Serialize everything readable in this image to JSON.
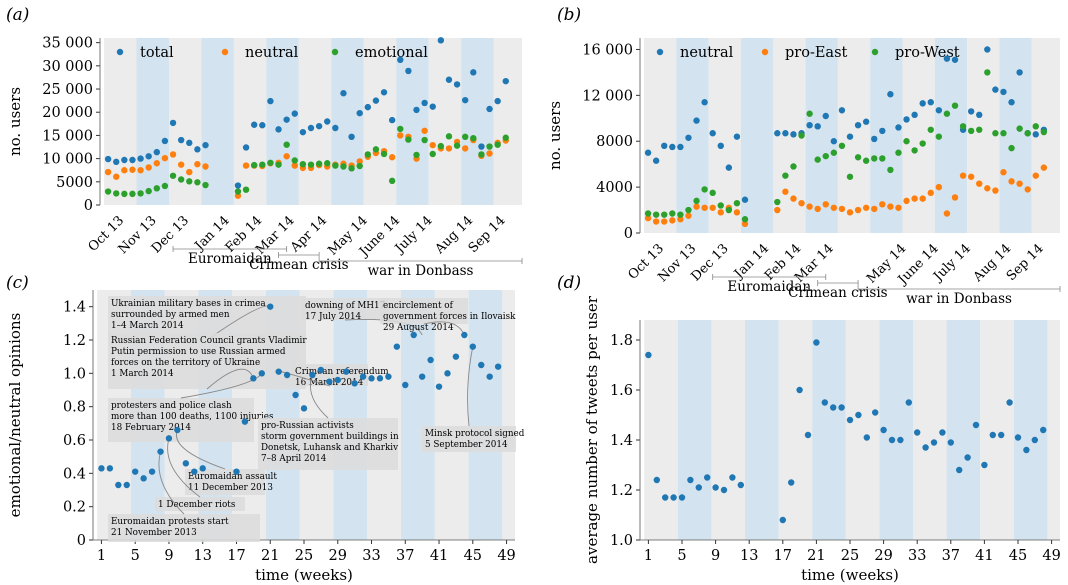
{
  "chart_data": [
    {
      "panel": "(a)",
      "type": "scatter",
      "ylabel": "no. users",
      "ylim": [
        0,
        36000
      ],
      "y_ticks": [
        0,
        5000,
        10000,
        15000,
        20000,
        25000,
        30000,
        35000
      ],
      "y_tick_labels": [
        "0",
        "5000",
        "10 000",
        "15 000",
        "20 000",
        "25 000",
        "30 000",
        "35 000"
      ],
      "x_ticks": [
        {
          "label": "Oct 13",
          "x": 3
        },
        {
          "label": "Nov 13",
          "x": 7
        },
        {
          "label": "Dec 13",
          "x": 11
        },
        {
          "label": "Jan 14",
          "x": 16
        },
        {
          "label": "Feb 14",
          "x": 20
        },
        {
          "label": "Mar 14",
          "x": 24
        },
        {
          "label": "Apr 14",
          "x": 28
        },
        {
          "label": "May 14",
          "x": 33
        },
        {
          "label": "June 14",
          "x": 37
        },
        {
          "label": "July 14",
          "x": 41
        },
        {
          "label": "Aug 14",
          "x": 46
        },
        {
          "label": "Sep 14",
          "x": 50
        }
      ],
      "legend": [
        "total",
        "neutral",
        "emotional"
      ],
      "periods": [
        {
          "label": "Euromaidan",
          "start": 9,
          "end": 23
        },
        {
          "label": "Crimean crisis",
          "start": 22,
          "end": 27
        },
        {
          "label": "war in Donbass",
          "start": 27,
          "end": 52
        }
      ],
      "series": [
        {
          "name": "total",
          "color": "#1f77b4",
          "x": [
            1,
            2,
            3,
            4,
            5,
            6,
            7,
            8,
            9,
            10,
            11,
            12,
            13,
            17,
            18,
            19,
            20,
            21,
            22,
            23,
            24,
            25,
            26,
            27,
            28,
            29,
            30,
            31,
            32,
            33,
            34,
            35,
            36,
            37,
            38,
            39,
            40,
            41,
            42,
            43,
            44,
            45,
            46,
            47,
            48,
            49,
            50
          ],
          "values": [
            9900,
            9300,
            9700,
            9700,
            10000,
            10500,
            11400,
            13800,
            17700,
            14000,
            13400,
            12000,
            12900,
            4200,
            12400,
            17300,
            17200,
            22400,
            16300,
            18400,
            19700,
            15700,
            16600,
            17000,
            18000,
            16600,
            24100,
            14700,
            19800,
            21100,
            22500,
            24300,
            18300,
            31300,
            28900,
            20500,
            22000,
            21200,
            35500,
            27000,
            26000,
            22600,
            28600,
            12600,
            20700,
            22400,
            26700
          ]
        },
        {
          "name": "neutral",
          "color": "#ff7f0e",
          "x": [
            1,
            2,
            3,
            4,
            5,
            6,
            7,
            8,
            9,
            10,
            11,
            12,
            13,
            17,
            18,
            19,
            20,
            21,
            22,
            23,
            24,
            25,
            26,
            27,
            28,
            29,
            30,
            31,
            32,
            33,
            34,
            35,
            36,
            37,
            38,
            39,
            40,
            41,
            42,
            43,
            44,
            45,
            46,
            47,
            48,
            49,
            50
          ],
          "values": [
            7100,
            6100,
            7500,
            7600,
            7500,
            8100,
            9000,
            10100,
            10900,
            8700,
            7100,
            8800,
            8300,
            2000,
            8500,
            8500,
            8400,
            9000,
            9100,
            10500,
            8500,
            8000,
            8000,
            8600,
            8300,
            8700,
            8900,
            8500,
            9400,
            10400,
            11200,
            11600,
            10300,
            15000,
            14700,
            10000,
            16000,
            12900,
            12200,
            12200,
            13600,
            12200,
            14000,
            10600,
            11100,
            13400,
            13900
          ]
        },
        {
          "name": "emotional",
          "color": "#2ca02c",
          "x": [
            1,
            2,
            3,
            4,
            5,
            6,
            7,
            8,
            9,
            10,
            11,
            12,
            13,
            17,
            18,
            19,
            20,
            21,
            22,
            23,
            24,
            25,
            26,
            27,
            28,
            29,
            30,
            31,
            32,
            33,
            34,
            35,
            36,
            37,
            38,
            39,
            40,
            41,
            42,
            43,
            44,
            45,
            46,
            47,
            48,
            49,
            50
          ],
          "values": [
            2900,
            2500,
            2400,
            2400,
            2500,
            3000,
            3600,
            4100,
            6300,
            5500,
            5100,
            4900,
            4300,
            2900,
            3300,
            8600,
            8700,
            9100,
            8700,
            13000,
            9600,
            8800,
            8700,
            8900,
            9000,
            8500,
            8300,
            7900,
            8400,
            10900,
            12000,
            11000,
            5200,
            16400,
            14100,
            10800,
            14000,
            11000,
            12700,
            14800,
            12800,
            14700,
            14400,
            10900,
            12600,
            13000,
            14500
          ]
        }
      ]
    },
    {
      "panel": "(b)",
      "type": "scatter",
      "ylabel": "no. users",
      "ylim": [
        0,
        17000
      ],
      "y_ticks": [
        0,
        4000,
        8000,
        12000,
        16000
      ],
      "y_tick_labels": [
        "0",
        "4000",
        "8000",
        "12 000",
        "16 000"
      ],
      "x_ticks": [
        {
          "label": "Oct 13",
          "x": 3
        },
        {
          "label": "Nov 13",
          "x": 7
        },
        {
          "label": "Dec 13",
          "x": 11
        },
        {
          "label": "Jan 14",
          "x": 16
        },
        {
          "label": "Feb 14",
          "x": 20
        },
        {
          "label": "Mar 14",
          "x": 24
        },
        {
          "label": "May 14",
          "x": 33
        },
        {
          "label": "June 14",
          "x": 37
        },
        {
          "label": "July 14",
          "x": 41
        },
        {
          "label": "Aug 14",
          "x": 46
        },
        {
          "label": "Sep 14",
          "x": 50
        }
      ],
      "legend": [
        "neutral",
        "pro-East",
        "pro-West"
      ],
      "periods": [
        {
          "label": "Euromaidan",
          "start": 9,
          "end": 23
        },
        {
          "label": "Crimean crisis",
          "start": 22,
          "end": 27
        },
        {
          "label": "war in Donbass",
          "start": 27,
          "end": 52
        }
      ],
      "series": [
        {
          "name": "neutral",
          "color": "#1f77b4",
          "x": [
            1,
            2,
            3,
            4,
            5,
            6,
            7,
            8,
            9,
            10,
            11,
            12,
            13,
            17,
            18,
            19,
            20,
            21,
            22,
            23,
            24,
            25,
            26,
            27,
            28,
            29,
            30,
            31,
            32,
            33,
            34,
            35,
            36,
            37,
            38,
            39,
            40,
            41,
            42,
            43,
            44,
            45,
            46,
            47,
            48,
            49,
            50
          ],
          "values": [
            7000,
            6300,
            7600,
            7500,
            7500,
            8300,
            9800,
            11400,
            8700,
            7600,
            5700,
            8400,
            2900,
            8700,
            8700,
            8600,
            8700,
            9400,
            9300,
            10200,
            8000,
            10700,
            8400,
            9400,
            9700,
            8200,
            8900,
            12100,
            9200,
            9900,
            10300,
            11300,
            11400,
            10700,
            15200,
            15100,
            9000,
            10600,
            10300,
            16000,
            12500,
            12300,
            11400,
            14000,
            8700,
            8600,
            9000
          ]
        },
        {
          "name": "pro-East",
          "color": "#ff7f0e",
          "x": [
            1,
            2,
            3,
            4,
            5,
            6,
            7,
            8,
            9,
            10,
            11,
            12,
            13,
            17,
            18,
            19,
            20,
            21,
            22,
            23,
            24,
            25,
            26,
            27,
            28,
            29,
            30,
            31,
            32,
            33,
            34,
            35,
            36,
            37,
            38,
            39,
            40,
            41,
            42,
            43,
            44,
            45,
            46,
            47,
            48,
            49,
            50
          ],
          "values": [
            1300,
            1000,
            1000,
            1100,
            1200,
            1500,
            2300,
            2200,
            2200,
            1800,
            2200,
            1800,
            800,
            2000,
            3600,
            3000,
            2600,
            2300,
            2100,
            2500,
            2200,
            2100,
            1800,
            2000,
            2200,
            2100,
            2500,
            2300,
            2200,
            2800,
            3000,
            3000,
            3500,
            4000,
            1700,
            3100,
            5000,
            4900,
            4300,
            3900,
            3700,
            5300,
            4500,
            4300,
            3800,
            5000,
            5700
          ]
        },
        {
          "name": "pro-West",
          "color": "#2ca02c",
          "x": [
            1,
            2,
            3,
            4,
            5,
            6,
            7,
            8,
            9,
            10,
            11,
            12,
            13,
            17,
            18,
            19,
            20,
            21,
            22,
            23,
            24,
            25,
            26,
            27,
            28,
            29,
            30,
            31,
            32,
            33,
            34,
            35,
            36,
            37,
            38,
            39,
            40,
            41,
            42,
            43,
            44,
            45,
            46,
            47,
            48,
            49,
            50
          ],
          "values": [
            1700,
            1600,
            1600,
            1700,
            1600,
            2000,
            2800,
            3800,
            3500,
            2400,
            2000,
            2600,
            1200,
            2700,
            5000,
            5800,
            8500,
            10400,
            6400,
            6700,
            7000,
            7600,
            4900,
            6600,
            6300,
            6500,
            6500,
            5500,
            7000,
            8000,
            7200,
            7800,
            9000,
            8400,
            10400,
            11100,
            9300,
            8900,
            9000,
            14000,
            8700,
            8700,
            7400,
            9100,
            8700,
            9300,
            8800
          ]
        }
      ]
    },
    {
      "panel": "(c)",
      "type": "scatter",
      "xlabel": "time (weeks)",
      "ylabel": "emotional/neutral opinions",
      "ylim": [
        0,
        1.5
      ],
      "y_ticks": [
        0,
        0.2,
        0.4,
        0.6,
        0.8,
        1.0,
        1.2,
        1.4
      ],
      "y_tick_labels": [
        "0",
        "0.2",
        "0.4",
        "0.6",
        "0.8",
        "1.0",
        "1.2",
        "1.4"
      ],
      "x_ticks": [
        1,
        5,
        9,
        13,
        17,
        21,
        25,
        29,
        33,
        37,
        41,
        45,
        49
      ],
      "series": [
        {
          "name": "",
          "color": "#1f77b4",
          "x": [
            1,
            2,
            3,
            4,
            5,
            6,
            7,
            8,
            9,
            10,
            11,
            12,
            13,
            17,
            18,
            19,
            20,
            21,
            22,
            23,
            24,
            25,
            26,
            27,
            28,
            29,
            30,
            31,
            32,
            33,
            34,
            35,
            36,
            37,
            38,
            39,
            40,
            41,
            42,
            43,
            44,
            45,
            46,
            47,
            48
          ],
          "values": [
            0.43,
            0.43,
            0.33,
            0.33,
            0.41,
            0.37,
            0.41,
            0.53,
            0.61,
            0.66,
            0.46,
            0.41,
            0.43,
            0.41,
            0.71,
            0.97,
            1.0,
            1.4,
            1.01,
            0.99,
            0.87,
            0.79,
            0.99,
            1.02,
            0.95,
            0.96,
            1.01,
            0.94,
            0.98,
            0.97,
            0.97,
            0.98,
            1.16,
            0.93,
            1.23,
            0.98,
            1.08,
            0.92,
            1.0,
            1.1,
            1.23,
            1.16,
            1.05,
            0.98,
            1.04
          ]
        }
      ],
      "annotations": [
        "Ukrainian military bases in crimea\nsurrounded by armed men\n1–4 March 2014",
        "Russian Federation Council grants Vladimir\nPutin permission to use Russian armed\nforces on the territory of Ukraine\n1 March 2014",
        "protesters and police clash\nmore than 100 deaths, 1100 injuries\n18 February 2014",
        "Euromaidan assault\n11 December 2013",
        "1 December riots",
        "Euromaidan protests start\n21 November 2013",
        "Crimean referendum\n16 March 2014",
        "pro-Russian activists\nstorm government buildings in\nDonetsk, Luhansk and Kharkiv\n7–8 April 2014",
        "downing of MH17\n17 July 2014",
        "encirclement of\ngovernment forces in Ilovaisk\n29 August 2014",
        "Minsk protocol signed\n5 September 2014"
      ]
    },
    {
      "panel": "(d)",
      "type": "scatter",
      "xlabel": "time (weeks)",
      "ylabel": "average number of tweets per user",
      "ylim": [
        1.0,
        1.88
      ],
      "y_ticks": [
        1.0,
        1.2,
        1.4,
        1.6,
        1.8
      ],
      "y_tick_labels": [
        "1.0",
        "1.2",
        "1.4",
        "1.6",
        "1.8"
      ],
      "x_ticks": [
        1,
        5,
        9,
        13,
        17,
        21,
        25,
        29,
        33,
        37,
        41,
        45,
        49
      ],
      "series": [
        {
          "name": "",
          "color": "#1f77b4",
          "x": [
            1,
            2,
            3,
            4,
            5,
            6,
            7,
            8,
            9,
            10,
            11,
            12,
            17,
            18,
            19,
            20,
            21,
            22,
            23,
            24,
            25,
            26,
            27,
            28,
            29,
            30,
            31,
            32,
            33,
            34,
            35,
            36,
            37,
            38,
            39,
            40,
            41,
            42,
            43,
            44,
            45,
            46,
            47,
            48
          ],
          "values": [
            1.74,
            1.24,
            1.17,
            1.17,
            1.17,
            1.24,
            1.21,
            1.25,
            1.21,
            1.2,
            1.25,
            1.22,
            1.08,
            1.23,
            1.6,
            1.42,
            1.79,
            1.55,
            1.53,
            1.53,
            1.48,
            1.5,
            1.41,
            1.51,
            1.44,
            1.4,
            1.4,
            1.55,
            1.43,
            1.37,
            1.39,
            1.43,
            1.39,
            1.28,
            1.33,
            1.46,
            1.3,
            1.42,
            1.42,
            1.55,
            1.41,
            1.36,
            1.4,
            1.44
          ]
        }
      ]
    }
  ]
}
